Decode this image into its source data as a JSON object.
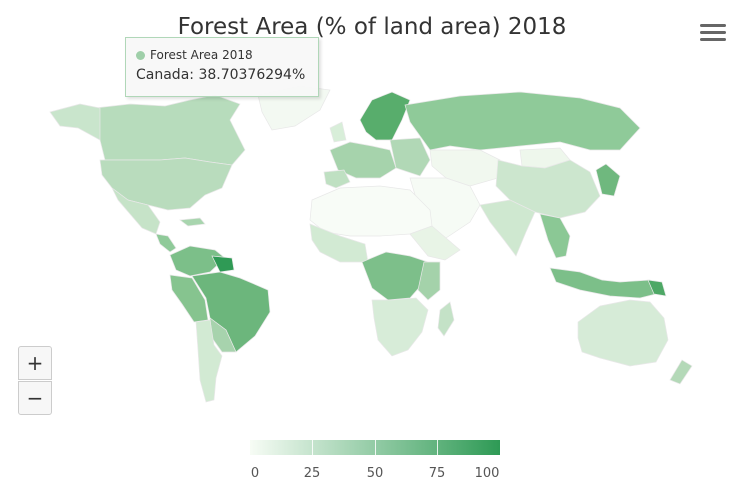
{
  "chart": {
    "title": "Forest Area (% of land area) 2018"
  },
  "tooltip": {
    "series_name": "Forest Area 2018",
    "point_text": "Canada: 38.70376294%"
  },
  "zoom": {
    "in_label": "+",
    "out_label": "−"
  },
  "legend": {
    "labels": [
      "0",
      "25",
      "50",
      "75",
      "100"
    ],
    "color_min": "#f7fcf5",
    "color_max": "#2e9a55"
  },
  "icons": {
    "menu": "hamburger-menu-icon"
  },
  "map_data": {
    "type": "choropleth",
    "metric": "Forest Area (% of land area)",
    "year": 2018,
    "range": [
      0,
      100
    ],
    "highlighted_country": "Canada",
    "highlighted_value": 38.70376294
  }
}
